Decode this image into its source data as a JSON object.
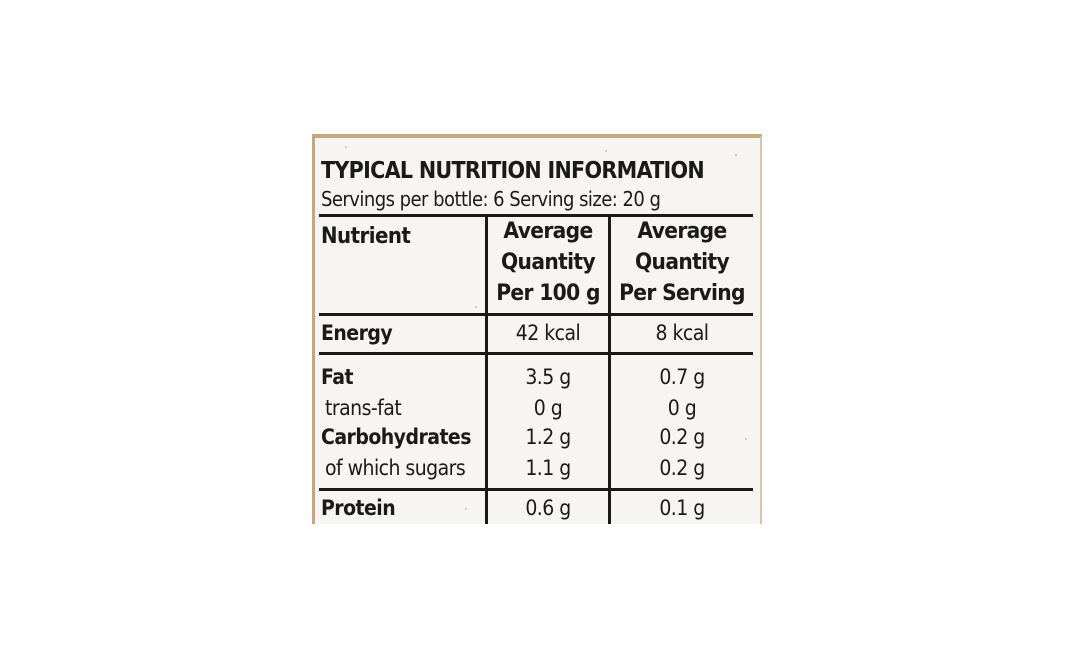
{
  "title": "TYPICAL NUTRITION INFORMATION",
  "servings_line": "Servings per bottle: 6 Serving size: 20 g",
  "header": {
    "nutrient": "Nutrient",
    "per100_line1": "Average",
    "per100_line2": "Quantity",
    "per100_line3": "Per 100 g",
    "serving_line1": "Average",
    "serving_line2": "Quantity",
    "serving_line3": "Per Serving"
  },
  "rows": [
    {
      "name": "Energy",
      "per100": "42 kcal",
      "serving": "8 kcal"
    },
    {
      "name": "Fat",
      "per100": "3.5 g",
      "serving": "0.7 g"
    },
    {
      "name": "trans-fat",
      "per100": "0 g",
      "serving": "0 g"
    },
    {
      "name": "Carbohydrates",
      "per100": "1.2 g",
      "serving": "0.2 g"
    },
    {
      "name": "of which sugars",
      "per100": "1.1 g",
      "serving": "0.2 g"
    },
    {
      "name": "Protein",
      "per100": "0.6 g",
      "serving": "0.1 g"
    }
  ],
  "colors": {
    "label_background": "#f6f5f3",
    "ink": "#1a1a1a",
    "bottle_edge": "#c9a679"
  }
}
